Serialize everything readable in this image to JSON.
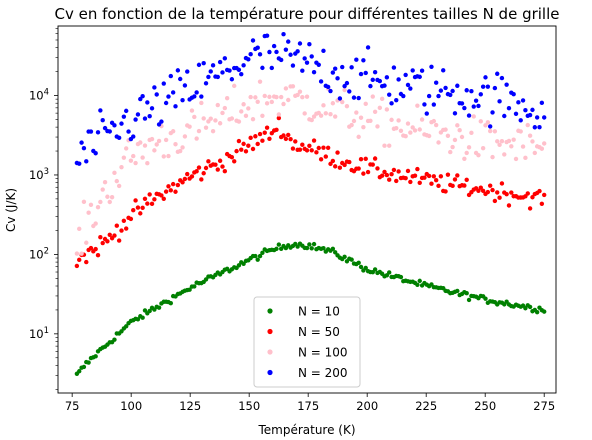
{
  "chart_data": {
    "type": "scatter",
    "title": "Cv en fonction de la température pour différentes tailles N de grille",
    "xlabel": "Température (K)",
    "ylabel": "Cv (J/K)",
    "xlim": [
      69,
      280
    ],
    "ylim": [
      1.8,
      75000
    ],
    "yscale": "log",
    "xticks": [
      75,
      100,
      125,
      150,
      175,
      200,
      225,
      250,
      275
    ],
    "yticks": [
      {
        "value": 10,
        "base": "10",
        "exp": "1"
      },
      {
        "value": 100,
        "base": "10",
        "exp": "2"
      },
      {
        "value": 1000,
        "base": "10",
        "exp": "3"
      },
      {
        "value": 10000,
        "base": "10",
        "exp": "4"
      }
    ],
    "grid": false,
    "legend_position": "lower-center",
    "x_range": [
      77,
      275
    ],
    "n_points": 200,
    "series": [
      {
        "name": "N = 10",
        "color": "#008000",
        "key": [
          [
            77,
            3.0
          ],
          [
            80,
            3.9
          ],
          [
            85,
            5.5
          ],
          [
            90,
            7.5
          ],
          [
            100,
            14
          ],
          [
            110,
            21
          ],
          [
            125,
            38
          ],
          [
            150,
            85
          ],
          [
            160,
            115
          ],
          [
            168,
            135
          ],
          [
            175,
            130
          ],
          [
            185,
            108
          ],
          [
            200,
            65
          ],
          [
            225,
            40
          ],
          [
            250,
            27
          ],
          [
            275,
            20
          ]
        ],
        "noise": 0.02
      },
      {
        "name": "N = 50",
        "color": "#ff0000",
        "key": [
          [
            77,
            85
          ],
          [
            80,
            95
          ],
          [
            90,
            150
          ],
          [
            100,
            310
          ],
          [
            110,
            500
          ],
          [
            125,
            950
          ],
          [
            140,
            1550
          ],
          [
            150,
            2400
          ],
          [
            158,
            3200
          ],
          [
            163,
            4300
          ],
          [
            168,
            2500
          ],
          [
            175,
            2200
          ],
          [
            185,
            1700
          ],
          [
            200,
            1200
          ],
          [
            225,
            850
          ],
          [
            250,
            650
          ],
          [
            275,
            500
          ]
        ],
        "noise": 0.06
      },
      {
        "name": "N = 100",
        "color": "#ffc0cb",
        "key": [
          [
            77,
            110
          ],
          [
            80,
            200
          ],
          [
            90,
            700
          ],
          [
            100,
            1700
          ],
          [
            110,
            2500
          ],
          [
            125,
            3500
          ],
          [
            140,
            5500
          ],
          [
            150,
            8000
          ],
          [
            160,
            9500
          ],
          [
            170,
            9000
          ],
          [
            185,
            7000
          ],
          [
            200,
            5000
          ],
          [
            225,
            3500
          ],
          [
            250,
            2600
          ],
          [
            275,
            2200
          ]
        ],
        "noise": 0.14
      },
      {
        "name": "N = 200",
        "color": "#0000ff",
        "key": [
          [
            77,
            1400
          ],
          [
            80,
            1900
          ],
          [
            90,
            3000
          ],
          [
            100,
            5000
          ],
          [
            110,
            7000
          ],
          [
            125,
            12000
          ],
          [
            140,
            20000
          ],
          [
            150,
            30000
          ],
          [
            160,
            32000
          ],
          [
            170,
            28000
          ],
          [
            185,
            20000
          ],
          [
            200,
            16000
          ],
          [
            225,
            12000
          ],
          [
            250,
            10000
          ],
          [
            275,
            6500
          ]
        ],
        "noise": 0.16
      }
    ]
  }
}
